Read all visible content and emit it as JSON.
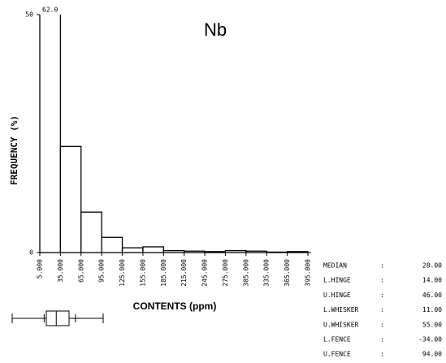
{
  "chart_data": {
    "type": "histogram",
    "title": "Nb",
    "xlabel": "CONTENTS (ppm)",
    "ylabel": "FREQUENCY (%)",
    "bins": [
      5,
      35,
      65,
      95,
      125,
      155,
      185,
      215,
      245,
      275,
      305,
      335,
      365,
      395
    ],
    "values": [
      62.0,
      22.3,
      8.5,
      3.2,
      1.0,
      1.2,
      0.4,
      0.3,
      0.2,
      0.4,
      0.3,
      0.1,
      0.2
    ],
    "value_labels": [
      "62.0",
      null,
      null,
      null,
      null,
      null,
      null,
      null,
      null,
      null,
      null,
      null,
      null
    ],
    "color": "#000000",
    "xlim": [
      5,
      395
    ],
    "xticks": [
      {
        "value": 5,
        "label": "5.000"
      },
      {
        "value": 35,
        "label": "35.000"
      },
      {
        "value": 65,
        "label": "65.000"
      },
      {
        "value": 95,
        "label": "95.000"
      },
      {
        "value": 125,
        "label": "125.000"
      },
      {
        "value": 155,
        "label": "155.000"
      },
      {
        "value": 185,
        "label": "185.000"
      },
      {
        "value": 215,
        "label": "215.000"
      },
      {
        "value": 245,
        "label": "245.000"
      },
      {
        "value": 275,
        "label": "275.000"
      },
      {
        "value": 305,
        "label": "305.000"
      },
      {
        "value": 335,
        "label": "335.000"
      },
      {
        "value": 365,
        "label": "365.000"
      },
      {
        "value": 395,
        "label": "395.000"
      }
    ],
    "ylim": [
      0,
      50
    ],
    "yticks": [
      0,
      50
    ],
    "stats": {
      "labels": [
        "MEDIAN",
        "L.HINGE",
        "U.HINGE",
        "L.WHISKER",
        "U.WHISKER",
        "L.FENCE",
        "U.FENCE"
      ],
      "values": [
        28,
        14,
        46,
        11,
        55,
        -34,
        94
      ],
      "value_labels": [
        "28.00",
        "14.00",
        "46.00",
        "11.00",
        "55.00",
        "-34.00",
        "94.00"
      ]
    }
  }
}
